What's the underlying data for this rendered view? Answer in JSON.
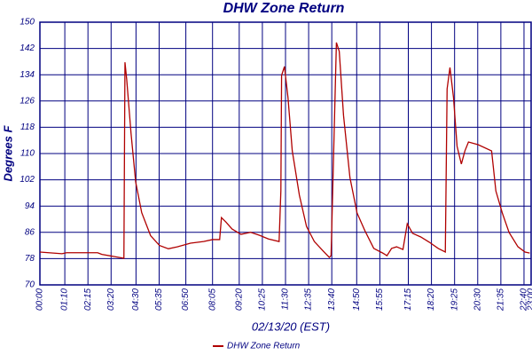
{
  "chart_data": {
    "type": "line",
    "title": "DHW Zone Return",
    "xlabel": "02/13/20 (EST)",
    "ylabel": "Degrees F",
    "x": [
      0,
      62,
      75,
      162,
      174,
      236,
      239,
      244,
      256,
      269,
      286,
      311,
      336,
      361,
      386,
      423,
      460,
      485,
      505,
      510,
      522,
      540,
      565,
      592,
      617,
      642,
      672,
      677,
      679,
      687,
      697,
      709,
      729,
      749,
      771,
      796,
      813,
      818,
      833,
      841,
      853,
      871,
      891,
      913,
      938,
      963,
      975,
      988,
      1002,
      1020,
      1032,
      1047,
      1070,
      1094,
      1119,
      1139,
      1144,
      1152,
      1162,
      1172,
      1184,
      1194,
      1204,
      1231,
      1269,
      1281,
      1299,
      1318,
      1343,
      1363,
      1376
    ],
    "series": [
      {
        "name": "DHW Zone Return",
        "color": "#b00000",
        "values": [
          80,
          79.5,
          79.8,
          79.8,
          79.3,
          78.1,
          137.8,
          132.4,
          116.2,
          101.4,
          92,
          85,
          82,
          81,
          81.6,
          82.7,
          83.2,
          83.8,
          83.8,
          90.5,
          89.2,
          87,
          85.4,
          86,
          85.1,
          84,
          83.2,
          98.7,
          133.8,
          136.5,
          127,
          110.8,
          97.3,
          87.8,
          83.2,
          80.3,
          78.4,
          78.9,
          143.8,
          141.1,
          121.6,
          102.7,
          91.9,
          86.5,
          81.1,
          79.7,
          78.9,
          81.1,
          81.6,
          80.8,
          88.6,
          85.7,
          84.6,
          83,
          81.1,
          80,
          129.7,
          136.2,
          127,
          112.2,
          106.8,
          110.8,
          113.5,
          112.7,
          110.8,
          98.6,
          91.9,
          86,
          81.6,
          80,
          79.7
        ]
      }
    ],
    "xlim": [
      0,
      1380
    ],
    "xticks": [
      {
        "value": 0,
        "label": "00:00"
      },
      {
        "value": 70,
        "label": "01:10"
      },
      {
        "value": 135,
        "label": "02:15"
      },
      {
        "value": 200,
        "label": "03:20"
      },
      {
        "value": 270,
        "label": "04:30"
      },
      {
        "value": 335,
        "label": "05:35"
      },
      {
        "value": 410,
        "label": "06:50"
      },
      {
        "value": 485,
        "label": "08:05"
      },
      {
        "value": 560,
        "label": "09:20"
      },
      {
        "value": 625,
        "label": "10:25"
      },
      {
        "value": 690,
        "label": "11:30"
      },
      {
        "value": 755,
        "label": "12:35"
      },
      {
        "value": 820,
        "label": "13:40"
      },
      {
        "value": 890,
        "label": "14:50"
      },
      {
        "value": 955,
        "label": "15:55"
      },
      {
        "value": 1035,
        "label": "17:15"
      },
      {
        "value": 1100,
        "label": "18:20"
      },
      {
        "value": 1165,
        "label": "19:25"
      },
      {
        "value": 1230,
        "label": "20:30"
      },
      {
        "value": 1295,
        "label": "21:35"
      },
      {
        "value": 1360,
        "label": "22:40"
      },
      {
        "value": 1380,
        "label": "23:00"
      }
    ],
    "ylim": [
      70,
      150
    ],
    "yticks": [
      70,
      78,
      86,
      94,
      102,
      110,
      118,
      126,
      134,
      142,
      150
    ],
    "grid": true
  }
}
